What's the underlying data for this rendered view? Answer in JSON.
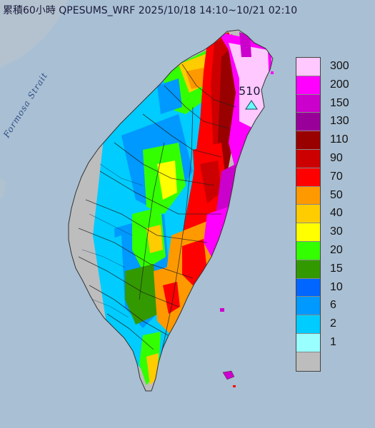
{
  "title": "累積60小時 QPESUMS_WRF 2025/10/18 14:10~10/21 02:10",
  "strait_label": "Formosa Strait",
  "max_value_label": "510",
  "colors": {
    "sea": "#a9bfd3",
    "land_mainland": "#b8c6d2",
    "no_data": "#bdbdbd",
    "county_line": "#333333"
  },
  "legend": {
    "items": [
      {
        "label": "300",
        "color": "#ffc8ff"
      },
      {
        "label": "200",
        "color": "#ff00ff"
      },
      {
        "label": "150",
        "color": "#cc00cc"
      },
      {
        "label": "130",
        "color": "#990099"
      },
      {
        "label": "110",
        "color": "#990000"
      },
      {
        "label": "90",
        "color": "#cc0000"
      },
      {
        "label": "70",
        "color": "#ff0000"
      },
      {
        "label": "50",
        "color": "#ff9900"
      },
      {
        "label": "40",
        "color": "#ffcc00"
      },
      {
        "label": "30",
        "color": "#ffff00"
      },
      {
        "label": "20",
        "color": "#33ff00"
      },
      {
        "label": "15",
        "color": "#339900"
      },
      {
        "label": "10",
        "color": "#0066ff"
      },
      {
        "label": "6",
        "color": "#0099ff"
      },
      {
        "label": "2",
        "color": "#00ccff"
      },
      {
        "label": "1",
        "color": "#99ffff"
      },
      {
        "label": "",
        "color": "#bdbdbd"
      }
    ]
  }
}
